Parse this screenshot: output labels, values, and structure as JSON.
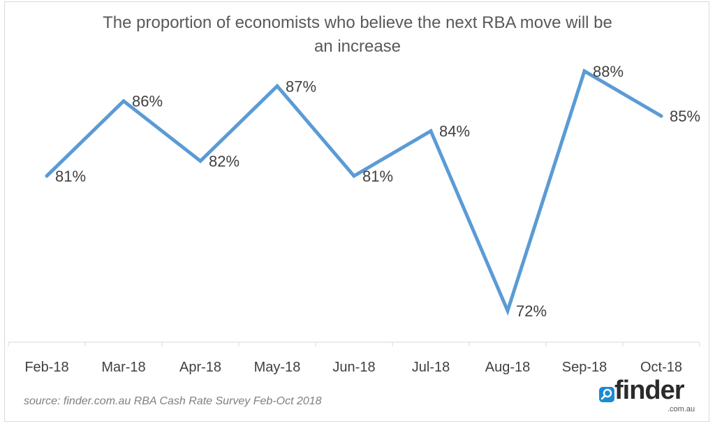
{
  "chart_data": {
    "type": "line",
    "title_line1": "The proportion of economists who believe the next RBA move will be",
    "title_line2": "an increase",
    "categories": [
      "Feb-18",
      "Mar-18",
      "Apr-18",
      "May-18",
      "Jun-18",
      "Jul-18",
      "Aug-18",
      "Sep-18",
      "Oct-18"
    ],
    "values": [
      81,
      86,
      82,
      87,
      81,
      84,
      72,
      88,
      85
    ],
    "labels": [
      "81%",
      "86%",
      "82%",
      "87%",
      "81%",
      "84%",
      "72%",
      "88%",
      "85%"
    ],
    "series_color": "#5b9bd5",
    "ylim": [
      70,
      90
    ],
    "grid": false
  },
  "footer": {
    "source": "source: finder.com.au RBA Cash Rate Survey Feb-Oct 2018"
  },
  "logo": {
    "word": "finder",
    "sub": ".com.au",
    "color_icon": "#1a8ad4"
  }
}
